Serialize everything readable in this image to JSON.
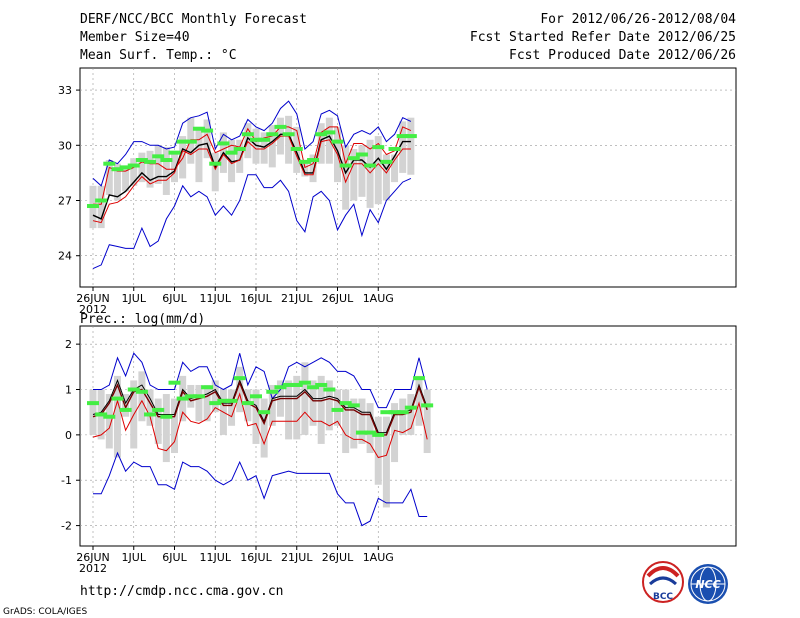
{
  "header": {
    "title": "DERF/NCC/BCC Monthly Forecast",
    "member_size": "Member Size=40",
    "variable": "Mean Surf. Temp.: °C",
    "period": "For 2012/06/26-2012/08/04",
    "started": "Fcst Started Refer Date 2012/06/25",
    "produced": "Fcst Produced Date 2012/06/26"
  },
  "footer": {
    "url": "http://cmdp.ncc.cma.gov.cn",
    "credit": "GrADS: COLA/IGES",
    "logo_bcc": "BCC",
    "logo_ncc": "NCC"
  },
  "colors": {
    "grid": "#999999",
    "box": "#d3d3d3",
    "median": "#44ee44",
    "mean": "#000000",
    "envelope": "#0000cc",
    "quantile": "#dd0000"
  },
  "chart_data": [
    {
      "type": "line",
      "title": "Mean Surf. Temp.: °C",
      "xlabels": [
        "26JUN",
        "1JUL",
        "6JUL",
        "11JUL",
        "16JUL",
        "21JUL",
        "26JUL",
        "1AUG"
      ],
      "year_label": "2012",
      "ylim": [
        22.3,
        34.2
      ],
      "yticks": [
        24,
        27,
        30,
        33
      ],
      "series": [
        {
          "name": "max",
          "color": "blue",
          "values": [
            28.2,
            27.8,
            29.2,
            29.0,
            29.5,
            30.2,
            30.2,
            30.0,
            30.0,
            29.8,
            29.9,
            31.2,
            31.5,
            31.6,
            31.8,
            29.8,
            30.6,
            30.3,
            30.5,
            31.4,
            31.0,
            30.8,
            31.2,
            32.0,
            32.4,
            31.7,
            29.8,
            30.2,
            31.7,
            31.9,
            31.6,
            29.9,
            30.6,
            30.8,
            30.6,
            31.0,
            30.2,
            30.6,
            31.5,
            31.3
          ]
        },
        {
          "name": "q_high",
          "color": "red",
          "values": [
            26.8,
            26.8,
            28.8,
            28.6,
            28.6,
            28.8,
            29.1,
            29.0,
            29.0,
            28.7,
            28.7,
            29.3,
            30.3,
            30.3,
            30.6,
            29.6,
            29.8,
            30.0,
            29.9,
            30.9,
            30.2,
            30.4,
            30.5,
            31.0,
            31.0,
            30.8,
            28.8,
            29.0,
            30.7,
            31.0,
            31.0,
            29.0,
            30.1,
            30.1,
            29.8,
            30.1,
            29.5,
            29.7,
            31.0,
            30.8
          ]
        },
        {
          "name": "mean",
          "color": "black",
          "values": [
            26.2,
            26.0,
            27.3,
            27.2,
            27.5,
            28.0,
            28.5,
            28.1,
            28.3,
            28.3,
            28.6,
            29.8,
            29.6,
            30.0,
            30.1,
            28.8,
            29.6,
            29.1,
            29.2,
            30.4,
            30.0,
            29.9,
            30.2,
            30.6,
            30.6,
            29.6,
            28.5,
            28.5,
            30.3,
            30.5,
            29.7,
            28.5,
            29.2,
            29.2,
            28.8,
            29.3,
            28.7,
            29.4,
            30.2,
            30.2
          ]
        },
        {
          "name": "q_low",
          "color": "red",
          "values": [
            25.9,
            25.8,
            26.8,
            26.9,
            27.2,
            27.8,
            28.3,
            27.9,
            28.1,
            28.1,
            28.5,
            29.7,
            29.5,
            29.8,
            29.8,
            28.7,
            29.5,
            29.0,
            29.2,
            30.2,
            29.8,
            29.8,
            30.1,
            30.5,
            30.5,
            29.4,
            28.4,
            28.4,
            30.2,
            30.3,
            29.5,
            28.0,
            29.0,
            29.0,
            28.5,
            29.0,
            28.5,
            29.2,
            29.8,
            29.8
          ]
        },
        {
          "name": "min",
          "color": "blue",
          "values": [
            23.3,
            23.5,
            24.6,
            24.5,
            24.4,
            24.4,
            25.5,
            24.5,
            24.8,
            26.0,
            26.7,
            27.8,
            27.2,
            27.5,
            27.2,
            26.2,
            26.7,
            26.2,
            27.0,
            28.4,
            28.4,
            27.7,
            27.7,
            28.1,
            27.5,
            25.9,
            25.3,
            27.2,
            27.5,
            27.0,
            25.4,
            26.2,
            26.8,
            25.1,
            26.5,
            25.8,
            27.0,
            27.5,
            28.0,
            28.2
          ]
        }
      ],
      "box_low": [
        25.5,
        25.5,
        27.3,
        27.0,
        27.5,
        27.8,
        28.0,
        27.7,
        27.9,
        27.3,
        28.0,
        28.2,
        29.0,
        28.0,
        29.3,
        27.5,
        28.5,
        28.0,
        28.5,
        29.3,
        29.0,
        29.0,
        28.8,
        29.5,
        29.0,
        28.5,
        28.3,
        28.0,
        29.0,
        29.0,
        28.0,
        26.5,
        27.0,
        27.2,
        26.6,
        26.8,
        27.0,
        28.0,
        28.5,
        28.4
      ],
      "box_high": [
        27.8,
        27.8,
        29.2,
        29.0,
        28.7,
        29.3,
        29.6,
        29.7,
        30.0,
        29.9,
        29.7,
        30.5,
        31.5,
        31.0,
        31.4,
        29.6,
        30.7,
        30.3,
        30.3,
        31.2,
        30.9,
        30.7,
        31.1,
        31.5,
        31.6,
        31.0,
        29.0,
        29.5,
        31.2,
        31.5,
        31.0,
        30.0,
        29.8,
        30.0,
        30.3,
        30.5,
        29.5,
        29.5,
        31.3,
        31.5
      ],
      "median": [
        26.7,
        27.0,
        29.0,
        28.7,
        28.8,
        28.9,
        29.2,
        29.1,
        29.4,
        29.2,
        29.6,
        30.2,
        30.2,
        30.9,
        30.8,
        29.0,
        30.1,
        29.6,
        29.8,
        30.6,
        30.3,
        30.3,
        30.6,
        31.0,
        30.6,
        29.8,
        29.1,
        29.2,
        30.6,
        30.7,
        30.2,
        28.9,
        29.3,
        29.5,
        28.9,
        29.9,
        29.1,
        29.8,
        30.5,
        30.5
      ]
    },
    {
      "type": "line",
      "title": "Prec.: log(mm/d)",
      "xlabels": [
        "26JUN",
        "1JUL",
        "6JUL",
        "11JUL",
        "16JUL",
        "21JUL",
        "26JUL",
        "1AUG"
      ],
      "year_label": "2012",
      "ylim": [
        -2.45,
        2.4
      ],
      "yticks": [
        -2,
        -1,
        0,
        1,
        2
      ],
      "series": [
        {
          "name": "max",
          "color": "blue",
          "values": [
            1.0,
            1.0,
            1.1,
            1.7,
            1.3,
            1.8,
            1.6,
            1.1,
            1.0,
            1.0,
            1.0,
            1.6,
            1.4,
            1.5,
            1.5,
            1.1,
            1.0,
            1.1,
            1.8,
            1.1,
            1.5,
            1.4,
            0.8,
            1.0,
            1.5,
            1.6,
            1.5,
            1.6,
            1.7,
            1.6,
            1.4,
            1.4,
            1.3,
            1.0,
            1.0,
            0.6,
            0.6,
            1.0,
            1.0,
            1.0,
            1.7,
            1.0
          ]
        },
        {
          "name": "q_high",
          "color": "black",
          "values": [
            0.45,
            0.5,
            0.75,
            1.2,
            0.7,
            1.0,
            1.1,
            0.8,
            0.45,
            0.45,
            0.45,
            1.0,
            0.8,
            0.85,
            0.9,
            1.0,
            0.7,
            0.7,
            1.2,
            0.75,
            0.65,
            0.3,
            0.8,
            0.85,
            0.85,
            0.85,
            1.0,
            0.8,
            0.8,
            0.85,
            0.8,
            0.6,
            0.6,
            0.5,
            0.5,
            0.05,
            0.05,
            0.5,
            0.5,
            0.55,
            1.1,
            0.6
          ]
        },
        {
          "name": "mean",
          "color": "darkred",
          "values": [
            0.4,
            0.45,
            0.7,
            1.1,
            0.6,
            0.95,
            1.0,
            0.7,
            0.4,
            0.4,
            0.4,
            0.95,
            0.75,
            0.8,
            0.85,
            0.95,
            0.65,
            0.65,
            1.15,
            0.7,
            0.6,
            0.25,
            0.75,
            0.8,
            0.8,
            0.8,
            0.95,
            0.75,
            0.75,
            0.8,
            0.75,
            0.55,
            0.55,
            0.45,
            0.45,
            0.0,
            0.0,
            0.45,
            0.45,
            0.5,
            1.05,
            0.55
          ]
        },
        {
          "name": "q_low",
          "color": "red",
          "values": [
            -0.05,
            0.0,
            0.15,
            0.75,
            0.1,
            0.45,
            0.75,
            0.4,
            -0.3,
            -0.35,
            -0.15,
            0.5,
            0.3,
            0.25,
            0.35,
            0.6,
            0.5,
            0.4,
            0.9,
            0.2,
            0.25,
            -0.2,
            0.3,
            0.3,
            0.3,
            0.3,
            0.5,
            0.3,
            0.3,
            0.2,
            0.3,
            0.0,
            -0.1,
            -0.1,
            -0.2,
            -0.5,
            -0.45,
            0.1,
            0.05,
            0.15,
            0.7,
            -0.1
          ]
        },
        {
          "name": "min",
          "color": "blue",
          "values": [
            -1.3,
            -1.3,
            -0.9,
            -0.4,
            -0.8,
            -0.6,
            -0.7,
            -0.7,
            -1.1,
            -1.1,
            -1.2,
            -0.6,
            -0.7,
            -0.7,
            -0.8,
            -1.0,
            -1.1,
            -1.0,
            -0.6,
            -1.0,
            -0.9,
            -1.4,
            -0.9,
            -0.85,
            -0.8,
            -0.85,
            -0.85,
            -0.85,
            -0.85,
            -0.85,
            -1.3,
            -1.5,
            -1.5,
            -2.0,
            -1.9,
            -1.4,
            -1.5,
            -1.5,
            -1.5,
            -1.2,
            -1.8,
            -1.8
          ]
        }
      ],
      "box_low": [
        0.0,
        -0.1,
        -0.3,
        -0.5,
        0.4,
        -0.3,
        0.3,
        0.2,
        -0.2,
        -0.6,
        -0.4,
        0.3,
        0.6,
        0.3,
        0.3,
        0.5,
        0.0,
        0.2,
        0.5,
        0.3,
        -0.2,
        -0.5,
        0.2,
        0.4,
        -0.1,
        -0.1,
        0.0,
        0.2,
        -0.2,
        0.1,
        0.2,
        -0.4,
        -0.3,
        -0.2,
        -0.4,
        -1.1,
        -1.6,
        -0.6,
        0.0,
        0.0,
        0.2,
        -0.4
      ],
      "box_high": [
        1.0,
        1.0,
        0.9,
        1.3,
        0.9,
        1.2,
        1.4,
        1.0,
        0.8,
        0.9,
        0.8,
        1.3,
        1.1,
        1.1,
        1.1,
        1.2,
        1.0,
        1.0,
        1.5,
        1.0,
        1.0,
        0.8,
        1.1,
        1.2,
        1.2,
        1.3,
        1.6,
        1.2,
        1.3,
        1.2,
        1.0,
        1.0,
        0.8,
        0.8,
        0.7,
        0.4,
        0.4,
        0.7,
        0.8,
        0.9,
        1.3,
        1.0
      ],
      "median": [
        0.7,
        0.45,
        0.4,
        0.8,
        0.55,
        1.0,
        0.95,
        0.45,
        0.55,
        0.4,
        1.15,
        0.8,
        0.85,
        0.85,
        1.05,
        0.7,
        0.75,
        0.75,
        1.25,
        0.7,
        0.85,
        0.5,
        0.95,
        1.05,
        1.1,
        1.1,
        1.15,
        1.05,
        1.1,
        1.0,
        0.55,
        0.7,
        0.65,
        0.05,
        0.05,
        0.0,
        0.5,
        0.5,
        0.5,
        0.6,
        1.25,
        0.65
      ]
    }
  ]
}
